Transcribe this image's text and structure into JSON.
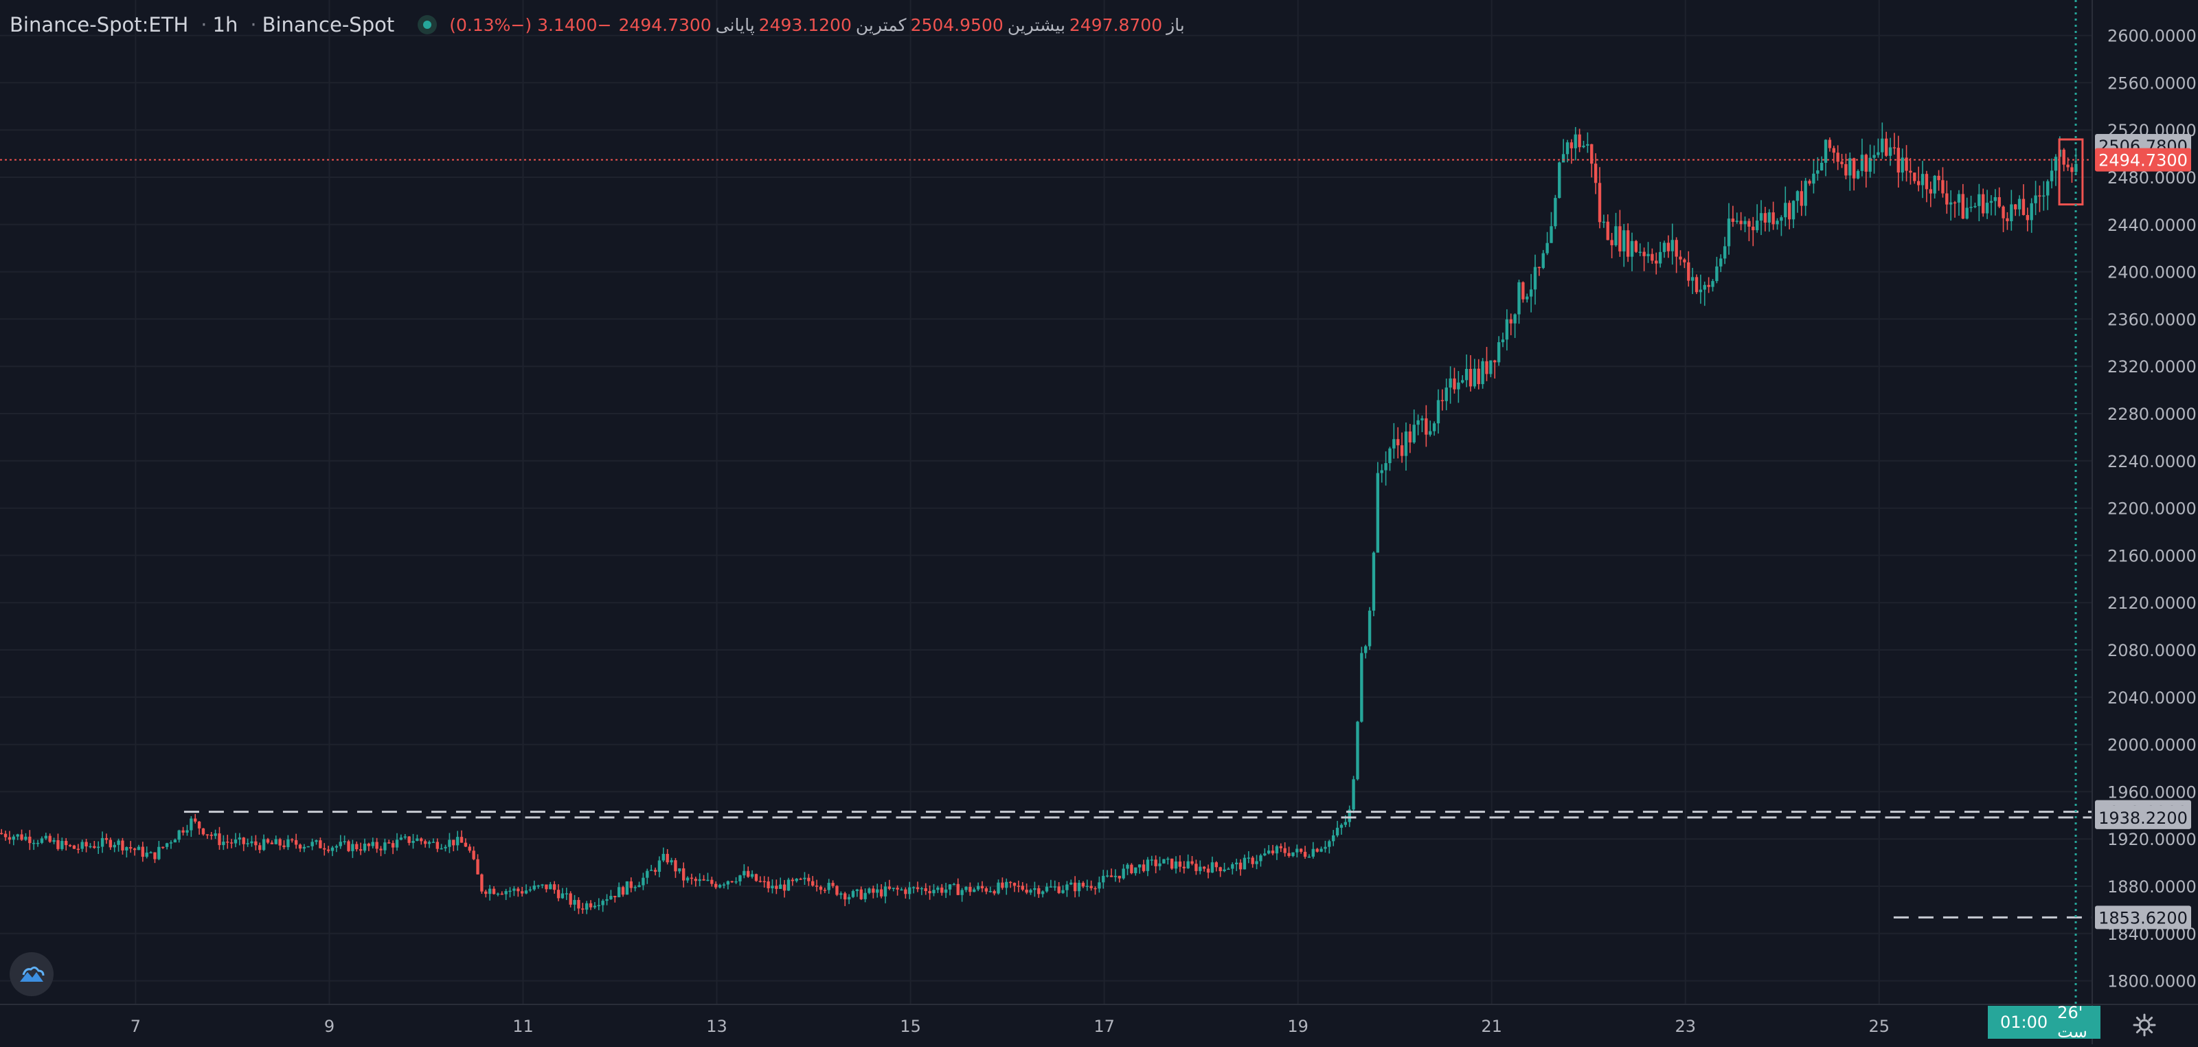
{
  "legend": {
    "symbol": "Binance-Spot:ETH",
    "interval": "1h",
    "exchange": "Binance-Spot",
    "open_label": "باز",
    "open": "2497.8700",
    "high_label": "بیشترین",
    "high": "2504.9500",
    "low_label": "کمترین",
    "low": "2493.1200",
    "close_label": "پایانی",
    "close": "2494.7300",
    "change": "−3.1400 (−0.13%)"
  },
  "time_badge": {
    "time": "01:00",
    "date": "26' ست"
  },
  "colors": {
    "background": "#131722",
    "up": "#26a69a",
    "down": "#ef5350",
    "grid": "#1e222d",
    "axis_text": "#b2b5be",
    "level_badge": "#b2b5be"
  },
  "icons": {
    "logo": "cloud-logo-icon",
    "settings": "gear-icon"
  },
  "chart_data": {
    "type": "candlestick",
    "title": "Binance-Spot:ETH · 1h · Binance-Spot",
    "ylim": [
      1780,
      2630
    ],
    "xlim": [
      5.6,
      27.2
    ],
    "y_ticks": [
      "1800.0000",
      "1840.0000",
      "1880.0000",
      "1920.0000",
      "1960.0000",
      "2000.0000",
      "2040.0000",
      "2080.0000",
      "2120.0000",
      "2160.0000",
      "2200.0000",
      "2240.0000",
      "2280.0000",
      "2320.0000",
      "2360.0000",
      "2400.0000",
      "2440.0000",
      "2480.0000",
      "2520.0000",
      "2560.0000",
      "2600.0000"
    ],
    "x_ticks": [
      {
        "day": 7,
        "label": "7"
      },
      {
        "day": 9,
        "label": "9"
      },
      {
        "day": 11,
        "label": "11"
      },
      {
        "day": 13,
        "label": "13"
      },
      {
        "day": 15,
        "label": "15"
      },
      {
        "day": 17,
        "label": "17"
      },
      {
        "day": 19,
        "label": "19"
      },
      {
        "day": 21,
        "label": "21"
      },
      {
        "day": 23,
        "label": "23"
      },
      {
        "day": 25,
        "label": "25"
      }
    ],
    "grid": true,
    "price_path": [
      [
        5.6,
        1925
      ],
      [
        6.0,
        1920
      ],
      [
        6.4,
        1912
      ],
      [
        6.8,
        1918
      ],
      [
        7.2,
        1905
      ],
      [
        7.5,
        1928
      ],
      [
        7.6,
        1935
      ],
      [
        7.9,
        1918
      ],
      [
        8.3,
        1915
      ],
      [
        8.7,
        1916
      ],
      [
        9.1,
        1914
      ],
      [
        9.5,
        1913
      ],
      [
        9.9,
        1920
      ],
      [
        10.1,
        1916
      ],
      [
        10.3,
        1918
      ],
      [
        10.45,
        1915
      ],
      [
        10.6,
        1878
      ],
      [
        11.0,
        1876
      ],
      [
        11.3,
        1880
      ],
      [
        11.6,
        1862
      ],
      [
        12.0,
        1875
      ],
      [
        12.3,
        1888
      ],
      [
        12.5,
        1905
      ],
      [
        12.7,
        1885
      ],
      [
        13.0,
        1882
      ],
      [
        13.3,
        1890
      ],
      [
        13.6,
        1878
      ],
      [
        14.0,
        1885
      ],
      [
        14.4,
        1872
      ],
      [
        14.8,
        1876
      ],
      [
        15.2,
        1878
      ],
      [
        15.6,
        1877
      ],
      [
        16.0,
        1879
      ],
      [
        16.4,
        1878
      ],
      [
        16.8,
        1880
      ],
      [
        17.0,
        1884
      ],
      [
        17.3,
        1895
      ],
      [
        17.6,
        1900
      ],
      [
        18.0,
        1896
      ],
      [
        18.4,
        1897
      ],
      [
        18.8,
        1910
      ],
      [
        19.1,
        1908
      ],
      [
        19.35,
        1918
      ],
      [
        19.55,
        1938
      ],
      [
        19.62,
        1980
      ],
      [
        19.67,
        2080
      ],
      [
        19.75,
        2090
      ],
      [
        19.85,
        2220
      ],
      [
        19.95,
        2250
      ],
      [
        20.1,
        2255
      ],
      [
        20.3,
        2270
      ],
      [
        20.5,
        2282
      ],
      [
        20.7,
        2318
      ],
      [
        20.9,
        2310
      ],
      [
        21.1,
        2340
      ],
      [
        21.3,
        2380
      ],
      [
        21.5,
        2395
      ],
      [
        21.65,
        2430
      ],
      [
        21.75,
        2505
      ],
      [
        21.9,
        2512
      ],
      [
        22.05,
        2502
      ],
      [
        22.15,
        2440
      ],
      [
        22.4,
        2425
      ],
      [
        22.7,
        2415
      ],
      [
        22.9,
        2420
      ],
      [
        23.1,
        2395
      ],
      [
        23.25,
        2380
      ],
      [
        23.5,
        2440
      ],
      [
        23.8,
        2445
      ],
      [
        24.1,
        2455
      ],
      [
        24.3,
        2470
      ],
      [
        24.5,
        2505
      ],
      [
        24.75,
        2488
      ],
      [
        25.1,
        2505
      ],
      [
        25.3,
        2485
      ],
      [
        25.6,
        2475
      ],
      [
        25.9,
        2452
      ],
      [
        26.1,
        2460
      ],
      [
        26.4,
        2452
      ],
      [
        26.6,
        2448
      ],
      [
        26.8,
        2488
      ],
      [
        26.95,
        2497
      ],
      [
        27.02,
        2494
      ]
    ],
    "series": [
      {
        "type": "horizontal_level",
        "value": 1943.02,
        "label": "1943.0200",
        "x_start": 7.5
      },
      {
        "type": "horizontal_level",
        "value": 1938.22,
        "label": "1938.2200",
        "x_start": 10.0
      },
      {
        "type": "horizontal_level",
        "value": 1853.62,
        "label": "1853.6200",
        "x_start": 25.15
      },
      {
        "type": "horizontal_level",
        "value": 2506.78,
        "label": "2506.7800"
      },
      {
        "type": "last_price",
        "value": 2494.73,
        "label": "2494.7300"
      }
    ],
    "highlight_box": {
      "x_start": 26.86,
      "x_end": 27.1,
      "y_low": 2457,
      "y_high": 2512
    },
    "crosshair_day": 27.03
  }
}
